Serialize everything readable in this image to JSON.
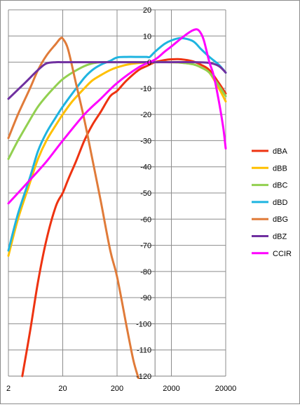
{
  "chart_data": {
    "type": "line",
    "title": "",
    "xlabel": "",
    "ylabel": "",
    "x_scale": "log",
    "xlim": [
      2,
      20000
    ],
    "ylim": [
      -120,
      20
    ],
    "x_ticks": [
      {
        "value": 2,
        "label": "2"
      },
      {
        "value": 20,
        "label": "20"
      },
      {
        "value": 200,
        "label": "200"
      },
      {
        "value": 2000,
        "label": "2000"
      },
      {
        "value": 20000,
        "label": "20000"
      }
    ],
    "y_ticks": [
      20,
      10,
      0,
      -10,
      -20,
      -30,
      -40,
      -50,
      -60,
      -70,
      -80,
      -90,
      -100,
      -110,
      -120
    ],
    "y_tick_labels": [
      "20",
      "10",
      "0",
      "-10",
      "-20",
      "-30",
      "-40",
      "-50",
      "-60",
      "-70",
      "-80",
      "-90",
      "-100",
      "-110",
      "-120"
    ],
    "grid": true,
    "legend_position": "right",
    "series": [
      {
        "name": "dBA",
        "color": "#ee3311",
        "points": [
          [
            3.6,
            -120
          ],
          [
            5,
            -103
          ],
          [
            7,
            -84
          ],
          [
            10,
            -68
          ],
          [
            15,
            -55
          ],
          [
            20,
            -50
          ],
          [
            25,
            -45
          ],
          [
            35,
            -38
          ],
          [
            50,
            -30
          ],
          [
            70,
            -24
          ],
          [
            100,
            -19
          ],
          [
            150,
            -13
          ],
          [
            200,
            -11
          ],
          [
            300,
            -7
          ],
          [
            500,
            -3
          ],
          [
            700,
            -1.5
          ],
          [
            1000,
            0
          ],
          [
            1500,
            0.8
          ],
          [
            2000,
            1.1
          ],
          [
            3000,
            1.1
          ],
          [
            5000,
            0.3
          ],
          [
            7000,
            -1
          ],
          [
            10000,
            -3
          ],
          [
            15000,
            -8
          ],
          [
            20000,
            -12
          ]
        ]
      },
      {
        "name": "dBB",
        "color": "#ffc000",
        "points": [
          [
            2,
            -74
          ],
          [
            3,
            -60
          ],
          [
            5,
            -46
          ],
          [
            7,
            -37
          ],
          [
            10,
            -30
          ],
          [
            15,
            -24
          ],
          [
            20,
            -20
          ],
          [
            30,
            -15
          ],
          [
            50,
            -10
          ],
          [
            70,
            -7
          ],
          [
            100,
            -5
          ],
          [
            150,
            -3
          ],
          [
            200,
            -2
          ],
          [
            300,
            -1
          ],
          [
            500,
            -0.3
          ],
          [
            1000,
            0
          ],
          [
            2000,
            0
          ],
          [
            3000,
            -0.2
          ],
          [
            5000,
            -0.8
          ],
          [
            7000,
            -2
          ],
          [
            10000,
            -4
          ],
          [
            15000,
            -10
          ],
          [
            20000,
            -15
          ]
        ]
      },
      {
        "name": "dBC",
        "color": "#92d050",
        "points": [
          [
            2,
            -37
          ],
          [
            3,
            -30
          ],
          [
            5,
            -22
          ],
          [
            7,
            -17
          ],
          [
            10,
            -13
          ],
          [
            15,
            -9
          ],
          [
            20,
            -6.5
          ],
          [
            30,
            -4
          ],
          [
            50,
            -1.5
          ],
          [
            70,
            -0.5
          ],
          [
            100,
            0
          ],
          [
            200,
            0
          ],
          [
            500,
            0
          ],
          [
            1000,
            0
          ],
          [
            2000,
            0
          ],
          [
            3000,
            -0.2
          ],
          [
            5000,
            -0.8
          ],
          [
            7000,
            -2
          ],
          [
            10000,
            -4
          ],
          [
            15000,
            -9
          ],
          [
            20000,
            -13
          ]
        ]
      },
      {
        "name": "dBD",
        "color": "#1fb4e0",
        "points": [
          [
            2,
            -72
          ],
          [
            3,
            -58
          ],
          [
            5,
            -44
          ],
          [
            7,
            -34
          ],
          [
            10,
            -27
          ],
          [
            15,
            -21
          ],
          [
            20,
            -17
          ],
          [
            30,
            -12
          ],
          [
            50,
            -6
          ],
          [
            70,
            -3
          ],
          [
            100,
            -1
          ],
          [
            150,
            0.5
          ],
          [
            200,
            1.8
          ],
          [
            300,
            2
          ],
          [
            500,
            2
          ],
          [
            700,
            2
          ],
          [
            800,
            2
          ],
          [
            1000,
            4
          ],
          [
            1500,
            7
          ],
          [
            2000,
            8.3
          ],
          [
            3000,
            9.2
          ],
          [
            5000,
            8
          ],
          [
            7000,
            5
          ],
          [
            10000,
            2
          ],
          [
            15000,
            -1
          ],
          [
            20000,
            -4
          ]
        ]
      },
      {
        "name": "dBG",
        "color": "#e07b39",
        "points": [
          [
            2,
            -29
          ],
          [
            3,
            -20
          ],
          [
            5,
            -10
          ],
          [
            7,
            -3
          ],
          [
            10,
            2.5
          ],
          [
            15,
            7
          ],
          [
            18,
            9
          ],
          [
            20,
            9
          ],
          [
            25,
            5
          ],
          [
            35,
            -8
          ],
          [
            50,
            -22
          ],
          [
            70,
            -37
          ],
          [
            100,
            -53
          ],
          [
            150,
            -72
          ],
          [
            200,
            -82
          ],
          [
            300,
            -101
          ],
          [
            400,
            -114
          ],
          [
            500,
            -121
          ]
        ]
      },
      {
        "name": "dBZ",
        "color": "#7030a0",
        "points": [
          [
            2,
            -14
          ],
          [
            4,
            -8
          ],
          [
            7,
            -3
          ],
          [
            10,
            -0.5
          ],
          [
            15,
            0
          ],
          [
            20,
            0
          ],
          [
            50,
            0
          ],
          [
            200,
            0
          ],
          [
            1000,
            0
          ],
          [
            2000,
            0
          ],
          [
            5000,
            0
          ],
          [
            10000,
            -0.3
          ],
          [
            15000,
            -1.5
          ],
          [
            20000,
            -4
          ]
        ]
      },
      {
        "name": "CCIR",
        "color": "#ff00ff",
        "points": [
          [
            2,
            -54
          ],
          [
            5,
            -45
          ],
          [
            10,
            -38
          ],
          [
            20,
            -30
          ],
          [
            50,
            -20
          ],
          [
            100,
            -14
          ],
          [
            200,
            -8
          ],
          [
            500,
            -2
          ],
          [
            1000,
            1
          ],
          [
            1500,
            4
          ],
          [
            2000,
            6
          ],
          [
            3000,
            9
          ],
          [
            4000,
            11
          ],
          [
            5000,
            12.2
          ],
          [
            6000,
            12.5
          ],
          [
            7000,
            11
          ],
          [
            8000,
            8
          ],
          [
            10000,
            0
          ],
          [
            12000,
            -5
          ],
          [
            15000,
            -15
          ],
          [
            18000,
            -25
          ],
          [
            20000,
            -33
          ]
        ]
      }
    ]
  }
}
